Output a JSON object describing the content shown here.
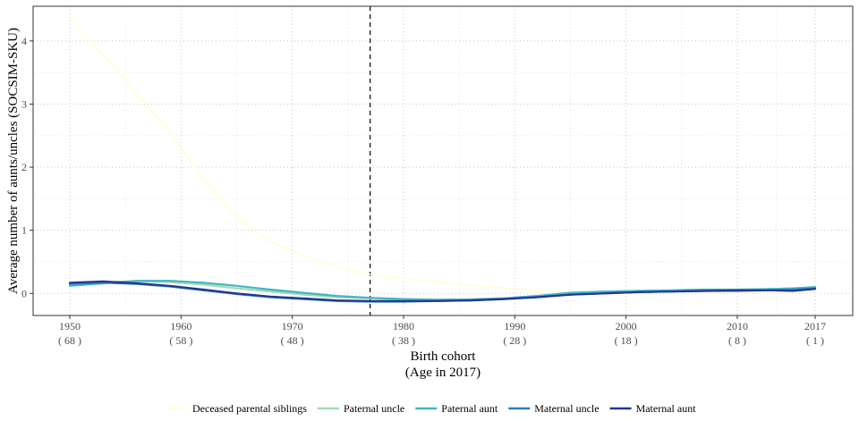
{
  "chart_data": {
    "type": "line",
    "title": "",
    "xlabel_lines": [
      "Birth cohort",
      "(Age in 2017)"
    ],
    "ylabel": "Average number of aunts/uncles (SOCSIM-SKU)",
    "xlim": [
      1950,
      2017
    ],
    "ylim": [
      -0.35,
      4.55
    ],
    "x_ticks": [
      1950,
      1960,
      1970,
      1980,
      1990,
      2000,
      2010,
      2017
    ],
    "x_tick_labels": [
      "1950",
      "1960",
      "1970",
      "1980",
      "1990",
      "2000",
      "2010",
      "2017"
    ],
    "x_tick_sublabels": [
      "( 68 )",
      "( 58 )",
      "( 48 )",
      "( 38 )",
      "( 28 )",
      "( 18 )",
      "( 8 )",
      "( 1 )"
    ],
    "y_ticks": [
      0,
      1,
      2,
      3,
      4
    ],
    "y_tick_labels": [
      "0",
      "1",
      "2",
      "3",
      "4"
    ],
    "grid": true,
    "reference_line": {
      "x": 1977,
      "style": "dashed"
    },
    "legend_position": "bottom",
    "series": [
      {
        "name": "Deceased parental siblings",
        "color": "#ffffcc",
        "x": [
          1950,
          1953,
          1956,
          1959,
          1962,
          1965,
          1968,
          1971,
          1974,
          1977,
          1980,
          1983,
          1986,
          1989,
          1992,
          1995
        ],
        "values": [
          4.35,
          3.78,
          3.18,
          2.55,
          1.82,
          1.2,
          0.82,
          0.6,
          0.42,
          0.3,
          0.24,
          0.18,
          0.13,
          0.09,
          0.05,
          0.02
        ]
      },
      {
        "name": "Paternal uncle",
        "color": "#a1dab4",
        "x": [
          1950,
          1953,
          1956,
          1959,
          1962,
          1965,
          1968,
          1971,
          1974,
          1977,
          1980,
          1983,
          1986,
          1989,
          1992,
          1995,
          1998,
          2001,
          2004,
          2007,
          2010,
          2013,
          2015,
          2017
        ],
        "values": [
          0.14,
          0.18,
          0.19,
          0.18,
          0.14,
          0.08,
          0.03,
          -0.02,
          -0.06,
          -0.08,
          -0.1,
          -0.1,
          -0.09,
          -0.08,
          -0.04,
          0.0,
          0.02,
          0.03,
          0.04,
          0.05,
          0.05,
          0.07,
          0.07,
          0.1
        ]
      },
      {
        "name": "Paternal aunt",
        "color": "#41b6c4",
        "x": [
          1950,
          1953,
          1956,
          1959,
          1962,
          1965,
          1968,
          1971,
          1974,
          1977,
          1980,
          1983,
          1986,
          1989,
          1992,
          1995,
          1998,
          2001,
          2004,
          2007,
          2010,
          2013,
          2015,
          2017
        ],
        "values": [
          0.12,
          0.16,
          0.2,
          0.2,
          0.17,
          0.12,
          0.06,
          0.01,
          -0.04,
          -0.07,
          -0.09,
          -0.1,
          -0.1,
          -0.08,
          -0.04,
          0.01,
          0.03,
          0.04,
          0.05,
          0.06,
          0.06,
          0.07,
          0.08,
          0.1
        ]
      },
      {
        "name": "Maternal uncle",
        "color": "#2c7fb8",
        "x": [
          1950,
          1953,
          1956,
          1959,
          1962,
          1965,
          1968,
          1971,
          1974,
          1977,
          1980,
          1983,
          1986,
          1989,
          1992,
          1995,
          1998,
          2001,
          2004,
          2007,
          2010,
          2013,
          2015,
          2017
        ],
        "values": [
          0.15,
          0.17,
          0.15,
          0.11,
          0.05,
          -0.01,
          -0.06,
          -0.09,
          -0.12,
          -0.13,
          -0.13,
          -0.12,
          -0.11,
          -0.09,
          -0.06,
          -0.02,
          0.0,
          0.02,
          0.03,
          0.04,
          0.04,
          0.05,
          0.06,
          0.08
        ]
      },
      {
        "name": "Maternal aunt",
        "color": "#253494",
        "x": [
          1950,
          1953,
          1956,
          1959,
          1962,
          1965,
          1968,
          1971,
          1974,
          1977,
          1980,
          1983,
          1986,
          1989,
          1992,
          1995,
          1998,
          2001,
          2004,
          2007,
          2010,
          2013,
          2015,
          2017
        ],
        "values": [
          0.17,
          0.19,
          0.16,
          0.12,
          0.06,
          0.0,
          -0.05,
          -0.08,
          -0.11,
          -0.12,
          -0.12,
          -0.12,
          -0.11,
          -0.09,
          -0.06,
          -0.02,
          0.0,
          0.02,
          0.03,
          0.04,
          0.05,
          0.05,
          0.04,
          0.07
        ]
      }
    ]
  }
}
